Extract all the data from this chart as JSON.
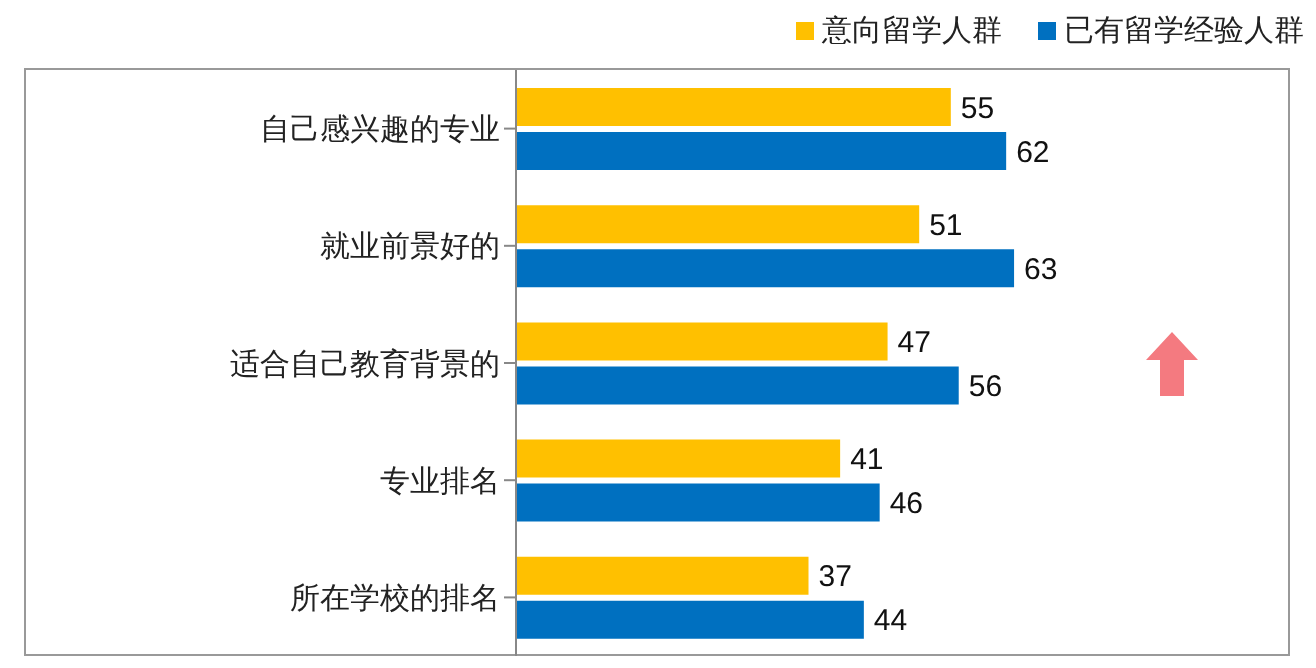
{
  "chart_data": {
    "type": "bar",
    "orientation": "horizontal",
    "categories": [
      "自己感兴趣的专业",
      "就业前景好的",
      "适合自己教育背景的",
      "专业排名",
      "所在学校的排名"
    ],
    "series": [
      {
        "name": "意向留学人群",
        "color": "#ffc000",
        "values": [
          55,
          51,
          47,
          41,
          37
        ]
      },
      {
        "name": "已有留学经验人群",
        "color": "#0070c0",
        "values": [
          62,
          63,
          56,
          46,
          44
        ]
      }
    ],
    "tick_labels": "y",
    "data_labels": true,
    "legend": "top right",
    "grid": false
  }
}
